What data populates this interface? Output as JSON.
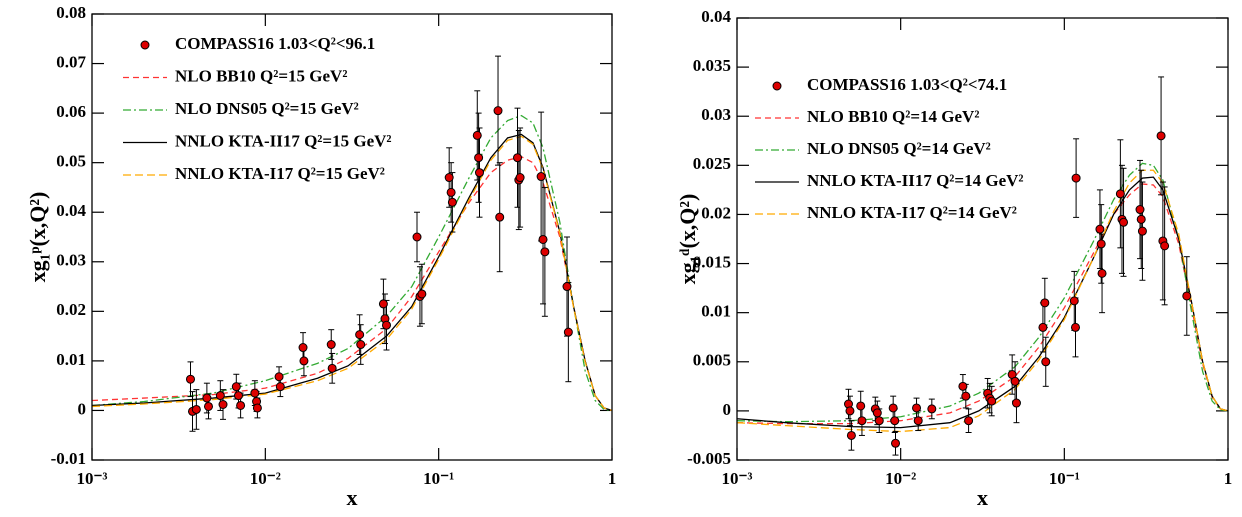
{
  "chart_data": [
    {
      "type": "line",
      "xlabel": "x",
      "ylabel": "xg₁ᵖ(x,Q²)",
      "xscale": "log",
      "legend": "upper left",
      "xlim": [
        0.001,
        1
      ],
      "xticks": [
        {
          "value": 0.001,
          "label": "10⁻³"
        },
        {
          "value": 0.01,
          "label": "10⁻²"
        },
        {
          "value": 0.1,
          "label": "10⁻¹"
        },
        1
      ],
      "ylim": [
        -0.01,
        0.08
      ],
      "yticks": [
        -0.01,
        0,
        0.01,
        0.02,
        0.03,
        0.04,
        0.05,
        0.06,
        0.07,
        0.08
      ],
      "series": [
        {
          "name": "COMPASS16 1.03<Q²<96.1",
          "type": "scatter",
          "color": "#dd0000",
          "x": [
            0.0037,
            0.0038,
            0.004,
            0.0046,
            0.0047,
            0.0055,
            0.0057,
            0.0068,
            0.007,
            0.0072,
            0.0087,
            0.0089,
            0.009,
            0.012,
            0.0122,
            0.0165,
            0.0167,
            0.024,
            0.0243,
            0.035,
            0.0355,
            0.048,
            0.049,
            0.05,
            0.075,
            0.078,
            0.08,
            0.115,
            0.118,
            0.12,
            0.167,
            0.17,
            0.172,
            0.22,
            0.225,
            0.285,
            0.29,
            0.295,
            0.39,
            0.4,
            0.41,
            0.55,
            0.56
          ],
          "values": [
            0.0063,
            -0.0002,
            0.0002,
            0.0025,
            0.0008,
            0.003,
            0.0012,
            0.0048,
            0.003,
            0.001,
            0.0035,
            0.0018,
            0.0005,
            0.0068,
            0.0048,
            0.0127,
            0.01,
            0.0133,
            0.0085,
            0.0153,
            0.0133,
            0.0215,
            0.0185,
            0.0172,
            0.035,
            0.023,
            0.0235,
            0.047,
            0.044,
            0.042,
            0.0555,
            0.051,
            0.048,
            0.0605,
            0.039,
            0.051,
            0.0465,
            0.047,
            0.0472,
            0.0345,
            0.032,
            0.025,
            0.0158
          ],
          "errors": [
            0.0035,
            0.004,
            0.004,
            0.003,
            0.0025,
            0.003,
            0.003,
            0.0025,
            0.0025,
            0.0025,
            0.0025,
            0.002,
            0.002,
            0.002,
            0.002,
            0.003,
            0.003,
            0.003,
            0.003,
            0.004,
            0.004,
            0.005,
            0.005,
            0.005,
            0.005,
            0.006,
            0.006,
            0.006,
            0.006,
            0.006,
            0.009,
            0.009,
            0.009,
            0.011,
            0.011,
            0.01,
            0.01,
            0.01,
            0.013,
            0.013,
            0.013,
            0.01,
            0.01
          ]
        },
        {
          "name": "NLO BB10 Q²=15 GeV²",
          "color": "#ff3333",
          "dash": "6,4",
          "x": [
            0.001,
            0.002,
            0.005,
            0.01,
            0.02,
            0.03,
            0.05,
            0.07,
            0.1,
            0.15,
            0.2,
            0.25,
            0.3,
            0.35,
            0.4,
            0.5,
            0.6,
            0.7,
            0.8,
            0.9,
            1
          ],
          "values": [
            0.002,
            0.0025,
            0.0032,
            0.0045,
            0.0075,
            0.0105,
            0.0165,
            0.023,
            0.032,
            0.042,
            0.048,
            0.0505,
            0.0512,
            0.05,
            0.046,
            0.035,
            0.021,
            0.01,
            0.003,
            0.0005,
            0
          ]
        },
        {
          "name": "NLO DNS05 Q²=15 GeV²",
          "color": "#33aa33",
          "dash": "8,3,2,3",
          "x": [
            0.001,
            0.002,
            0.005,
            0.01,
            0.02,
            0.03,
            0.05,
            0.07,
            0.1,
            0.15,
            0.2,
            0.25,
            0.3,
            0.35,
            0.4,
            0.5,
            0.6,
            0.7,
            0.8,
            0.9,
            1
          ],
          "values": [
            0.001,
            0.0018,
            0.0035,
            0.006,
            0.0095,
            0.0125,
            0.019,
            0.025,
            0.035,
            0.047,
            0.055,
            0.0585,
            0.0595,
            0.058,
            0.053,
            0.038,
            0.021,
            0.008,
            0.002,
            0.0002,
            0
          ]
        },
        {
          "name": "NNLO KTA-II17 Q²=15 GeV²",
          "color": "#000000",
          "dash": "none",
          "x": [
            0.001,
            0.002,
            0.005,
            0.01,
            0.02,
            0.03,
            0.05,
            0.07,
            0.1,
            0.15,
            0.2,
            0.25,
            0.3,
            0.35,
            0.4,
            0.5,
            0.6,
            0.7,
            0.8,
            0.9,
            1
          ],
          "values": [
            0.001,
            0.0015,
            0.0025,
            0.0035,
            0.0065,
            0.009,
            0.015,
            0.021,
            0.031,
            0.043,
            0.051,
            0.055,
            0.0557,
            0.054,
            0.049,
            0.036,
            0.021,
            0.01,
            0.003,
            0.0005,
            0
          ]
        },
        {
          "name": "NNLO KTA-I17 Q²=15 GeV²",
          "color": "#ffaa00",
          "dash": "8,4",
          "x": [
            0.001,
            0.002,
            0.005,
            0.01,
            0.02,
            0.03,
            0.05,
            0.07,
            0.1,
            0.15,
            0.2,
            0.25,
            0.3,
            0.35,
            0.4,
            0.5,
            0.6,
            0.7,
            0.8,
            0.9,
            1
          ],
          "values": [
            0.0008,
            0.0013,
            0.0022,
            0.0033,
            0.006,
            0.0085,
            0.0143,
            0.0205,
            0.0305,
            0.0425,
            0.0505,
            0.0545,
            0.0553,
            0.0537,
            0.0487,
            0.0358,
            0.0208,
            0.0098,
            0.003,
            0.0005,
            0
          ]
        }
      ]
    },
    {
      "type": "line",
      "xlabel": "x",
      "ylabel": "xg₁ᵈ(x,Q²)",
      "xscale": "log",
      "legend": "upper left",
      "xlim": [
        0.001,
        1
      ],
      "xticks": [
        {
          "value": 0.001,
          "label": "10⁻³"
        },
        {
          "value": 0.01,
          "label": "10⁻²"
        },
        {
          "value": 0.1,
          "label": "10⁻¹"
        },
        1
      ],
      "ylim": [
        -0.005,
        0.04
      ],
      "yticks": [
        -0.005,
        0,
        0.005,
        0.01,
        0.015,
        0.02,
        0.025,
        0.03,
        0.035,
        0.04
      ],
      "series": [
        {
          "name": "COMPASS16 1.03<Q²<74.1",
          "type": "scatter",
          "color": "#dd0000",
          "x": [
            0.0048,
            0.0049,
            0.005,
            0.0057,
            0.0058,
            0.007,
            0.0072,
            0.0074,
            0.009,
            0.0092,
            0.0093,
            0.0125,
            0.0128,
            0.0155,
            0.024,
            0.025,
            0.026,
            0.034,
            0.035,
            0.036,
            0.048,
            0.05,
            0.051,
            0.074,
            0.076,
            0.077,
            0.115,
            0.117,
            0.118,
            0.165,
            0.168,
            0.17,
            0.22,
            0.225,
            0.23,
            0.29,
            0.295,
            0.3,
            0.39,
            0.4,
            0.41,
            0.56
          ],
          "values": [
            0.0007,
            0,
            -0.0025,
            0.0005,
            -0.001,
            0.0002,
            -0.0002,
            -0.001,
            0.0003,
            -0.001,
            -0.0033,
            0.0003,
            -0.001,
            0.0002,
            0.0025,
            0.0015,
            -0.001,
            0.0018,
            0.0013,
            0.001,
            0.0037,
            0.003,
            0.0008,
            0.0085,
            0.011,
            0.005,
            0.0112,
            0.0085,
            0.0237,
            0.0185,
            0.017,
            0.014,
            0.0221,
            0.0195,
            0.0192,
            0.0205,
            0.0195,
            0.0183,
            0.028,
            0.0173,
            0.0168,
            0.0117
          ],
          "errors": [
            0.0015,
            0.0015,
            0.0015,
            0.0015,
            0.0015,
            0.0012,
            0.0012,
            0.0012,
            0.0012,
            0.0012,
            0.0012,
            0.001,
            0.001,
            0.001,
            0.0012,
            0.0012,
            0.0012,
            0.0015,
            0.0015,
            0.0015,
            0.002,
            0.002,
            0.002,
            0.0025,
            0.0025,
            0.0025,
            0.003,
            0.003,
            0.004,
            0.004,
            0.004,
            0.004,
            0.0055,
            0.0055,
            0.0055,
            0.005,
            0.005,
            0.005,
            0.006,
            0.006,
            0.006,
            0.004
          ]
        },
        {
          "name": "NLO BB10 Q²=14 GeV²",
          "color": "#ff3333",
          "dash": "6,4",
          "x": [
            0.001,
            0.002,
            0.005,
            0.01,
            0.02,
            0.03,
            0.05,
            0.07,
            0.1,
            0.15,
            0.2,
            0.25,
            0.3,
            0.35,
            0.4,
            0.5,
            0.6,
            0.7,
            0.8,
            0.9,
            1
          ],
          "values": [
            -0.0012,
            -0.0013,
            -0.0013,
            -0.001,
            -0.0002,
            0.001,
            0.0035,
            0.0065,
            0.0105,
            0.016,
            0.02,
            0.022,
            0.0231,
            0.023,
            0.0218,
            0.017,
            0.0105,
            0.0048,
            0.0014,
            0.0002,
            0
          ]
        },
        {
          "name": "NLO DNS05 Q²=14 GeV²",
          "color": "#33aa33",
          "dash": "8,3,2,3",
          "x": [
            0.001,
            0.002,
            0.005,
            0.01,
            0.02,
            0.03,
            0.05,
            0.07,
            0.1,
            0.15,
            0.2,
            0.25,
            0.3,
            0.35,
            0.4,
            0.5,
            0.6,
            0.7,
            0.8,
            0.9,
            1
          ],
          "values": [
            -0.001,
            -0.0011,
            -0.001,
            -0.0006,
            0.0005,
            0.0018,
            0.0045,
            0.0075,
            0.0115,
            0.0172,
            0.0215,
            0.024,
            0.0252,
            0.025,
            0.0235,
            0.0175,
            0.01,
            0.004,
            0.001,
            0.0001,
            0
          ]
        },
        {
          "name": "NNLO KTA-II17 Q²=14 GeV²",
          "color": "#000000",
          "dash": "none",
          "x": [
            0.001,
            0.002,
            0.005,
            0.01,
            0.02,
            0.03,
            0.05,
            0.07,
            0.1,
            0.15,
            0.2,
            0.25,
            0.3,
            0.35,
            0.4,
            0.5,
            0.6,
            0.7,
            0.8,
            0.9,
            1
          ],
          "values": [
            -0.0008,
            -0.0012,
            -0.0016,
            -0.0017,
            -0.0012,
            0,
            0.0025,
            0.0055,
            0.0095,
            0.0155,
            0.02,
            0.0225,
            0.0237,
            0.0238,
            0.0225,
            0.0175,
            0.011,
            0.005,
            0.0015,
            0.0002,
            0
          ]
        },
        {
          "name": "NNLO KTA-I17 Q²=14 GeV²",
          "color": "#ffaa00",
          "dash": "8,4",
          "x": [
            0.001,
            0.002,
            0.005,
            0.01,
            0.02,
            0.03,
            0.05,
            0.07,
            0.1,
            0.15,
            0.2,
            0.25,
            0.3,
            0.35,
            0.4,
            0.5,
            0.6,
            0.7,
            0.8,
            0.9,
            1
          ],
          "values": [
            -0.0012,
            -0.0015,
            -0.0019,
            -0.0021,
            -0.0017,
            -0.0005,
            0.0022,
            0.0052,
            0.0093,
            0.0155,
            0.0203,
            0.0232,
            0.0245,
            0.0245,
            0.0232,
            0.018,
            0.011,
            0.005,
            0.0015,
            0.0002,
            0
          ]
        }
      ]
    }
  ]
}
